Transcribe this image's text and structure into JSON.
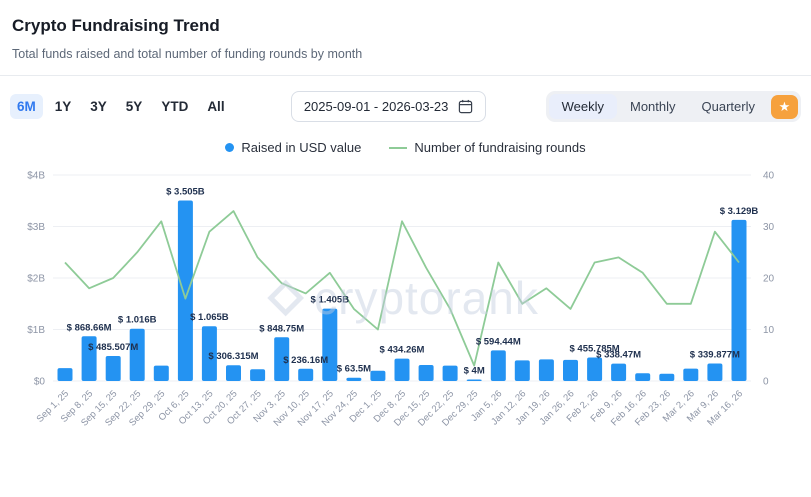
{
  "header": {
    "title": "Crypto Fundraising Trend",
    "subtitle": "Total funds raised and total number of funding rounds by month"
  },
  "controls": {
    "ranges": [
      {
        "label": "6M",
        "active": true
      },
      {
        "label": "1Y",
        "active": false
      },
      {
        "label": "3Y",
        "active": false
      },
      {
        "label": "5Y",
        "active": false
      },
      {
        "label": "YTD",
        "active": false
      },
      {
        "label": "All",
        "active": false
      }
    ],
    "date_range": "2025-09-01 - 2026-03-23",
    "granularity": [
      {
        "label": "Weekly",
        "active": true
      },
      {
        "label": "Monthly",
        "active": false
      },
      {
        "label": "Quarterly",
        "active": false
      }
    ],
    "premium_button_icon": "star-icon"
  },
  "legend": [
    {
      "label": "Raised in USD value",
      "marker": "dot",
      "color": "#2493f2"
    },
    {
      "label": "Number of fundraising rounds",
      "marker": "line",
      "color": "#8ecb97"
    }
  ],
  "watermark": "cryptorank",
  "colors": {
    "bar": "#2493f2",
    "line": "#8ecb97",
    "grid": "#edeff3",
    "accent_active": "#3079ef",
    "premium_orange": "#f6a13d"
  },
  "chart_data": {
    "type": "bar",
    "title": "Crypto Fundraising Trend",
    "subtitle": "Total funds raised and total number of funding rounds by month",
    "grid": true,
    "legend_position": "top-center",
    "categories": [
      "Sep 1, 25",
      "Sep 8, 25",
      "Sep 15, 25",
      "Sep 22, 25",
      "Sep 29, 25",
      "Oct 6, 25",
      "Oct 13, 25",
      "Oct 20, 25",
      "Oct 27, 25",
      "Nov 3, 25",
      "Nov 10, 25",
      "Nov 17, 25",
      "Nov 24, 25",
      "Dec 1, 25",
      "Dec 8, 25",
      "Dec 15, 25",
      "Dec 22, 25",
      "Dec 29, 25",
      "Jan 5, 26",
      "Jan 12, 26",
      "Jan 19, 26",
      "Jan 26, 26",
      "Feb 2, 26",
      "Feb 9, 26",
      "Feb 16, 26",
      "Feb 23, 26",
      "Mar 2, 26",
      "Mar 9, 26",
      "Mar 16, 26"
    ],
    "series": [
      {
        "name": "Raised in USD value",
        "type": "bar",
        "axis": "left",
        "values_million_usd": [
          250,
          868.66,
          485.507,
          1016,
          300,
          3505,
          1065,
          306.315,
          230,
          848.75,
          236.16,
          1405,
          63.5,
          200,
          434.26,
          310,
          300,
          4,
          594.44,
          400,
          420,
          410,
          455.785,
          338.47,
          150,
          140,
          240,
          339.877,
          3129
        ],
        "labels": [
          "",
          "$ 868.66M",
          "$ 485.507M",
          "$ 1.016B",
          "",
          "$ 3.505B",
          "$ 1.065B",
          "$ 306.315M",
          "",
          "$ 848.75M",
          "$ 236.16M",
          "$ 1.405B",
          "$ 63.5M",
          "",
          "$ 434.26M",
          "",
          "",
          "$ 4M",
          "$ 594.44M",
          "",
          "",
          "",
          "$ 455.785M",
          "$ 338.47M",
          "",
          "",
          "",
          "$ 339.877M",
          "$ 3.129B"
        ]
      },
      {
        "name": "Number of fundraising rounds",
        "type": "line",
        "axis": "right",
        "values": [
          23,
          18,
          20,
          25,
          31,
          16,
          29,
          33,
          24,
          19,
          17,
          21,
          14,
          10,
          31,
          22,
          14,
          3,
          23,
          15,
          18,
          14,
          23,
          24,
          21,
          15,
          15,
          29,
          23
        ]
      }
    ],
    "left_axis": {
      "ticks": [
        "$0",
        "$1B",
        "$2B",
        "$3B",
        "$4B"
      ],
      "min_million_usd": 0,
      "max_million_usd": 4000
    },
    "right_axis": {
      "ticks": [
        0,
        10,
        20,
        30,
        40
      ],
      "min": 0,
      "max": 40
    }
  }
}
